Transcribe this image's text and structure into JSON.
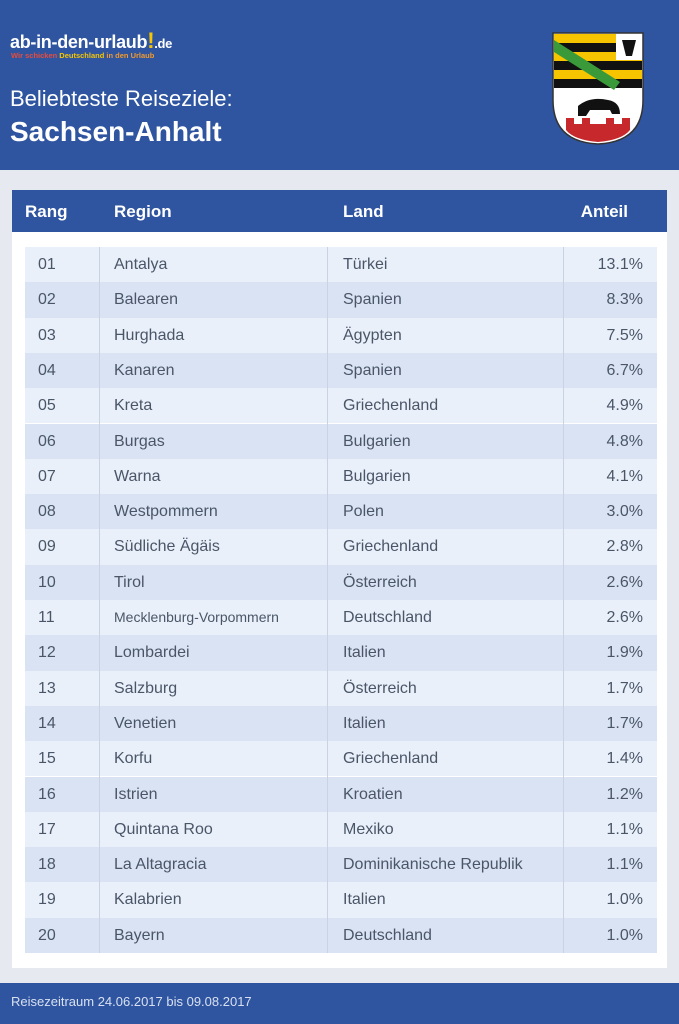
{
  "header": {
    "logo": {
      "name": "ab-in-den-urlaub",
      "mark": "!",
      "tld": ".de"
    },
    "tagline": [
      "Wir schicken",
      "Deutschland",
      "in den Urlaub"
    ],
    "title": "Beliebteste Reiseziele:",
    "subtitle": "Sachsen-Anhalt"
  },
  "table": {
    "columns": [
      "Rang",
      "Region",
      "Land",
      "Anteil"
    ],
    "rows": [
      [
        "01",
        "Antalya",
        "Türkei",
        "13.1%"
      ],
      [
        "02",
        "Balearen",
        "Spanien",
        "8.3%"
      ],
      [
        "03",
        "Hurghada",
        "Ägypten",
        "7.5%"
      ],
      [
        "04",
        "Kanaren",
        "Spanien",
        "6.7%"
      ],
      [
        "05",
        "Kreta",
        "Griechenland",
        "4.9%"
      ],
      [
        "06",
        "Burgas",
        "Bulgarien",
        "4.8%"
      ],
      [
        "07",
        "Warna",
        "Bulgarien",
        "4.1%"
      ],
      [
        "08",
        "Westpommern",
        "Polen",
        "3.0%"
      ],
      [
        "09",
        "Südliche Ägäis",
        "Griechenland",
        "2.8%"
      ],
      [
        "10",
        "Tirol",
        "Österreich",
        "2.6%"
      ],
      [
        "11",
        "Mecklenburg-Vorpommern",
        "Deutschland",
        "2.6%"
      ],
      [
        "12",
        "Lombardei",
        "Italien",
        "1.9%"
      ],
      [
        "13",
        "Salzburg",
        "Österreich",
        "1.7%"
      ],
      [
        "14",
        "Venetien",
        "Italien",
        "1.7%"
      ],
      [
        "15",
        "Korfu",
        "Griechenland",
        "1.4%"
      ],
      [
        "16",
        "Istrien",
        "Kroatien",
        "1.2%"
      ],
      [
        "17",
        "Quintana Roo",
        "Mexiko",
        "1.1%"
      ],
      [
        "18",
        "La Altagracia",
        "Dominikanische Republik",
        "1.1%"
      ],
      [
        "19",
        "Kalabrien",
        "Italien",
        "1.0%"
      ],
      [
        "20",
        "Bayern",
        "Deutschland",
        "1.0%"
      ]
    ]
  },
  "footer": "Reisezeitraum 24.06.2017 bis 09.08.2017"
}
